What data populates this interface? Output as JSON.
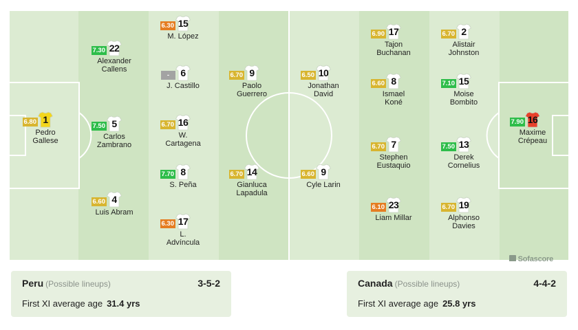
{
  "colors": {
    "stripe_light": "#dcebd2",
    "stripe_dark": "#cfe4c2",
    "line": "#ffffff",
    "shirt": "#ffffff",
    "peru_gk_shirt": "#f3d61c",
    "canada_gk_shirt": "#e8412b",
    "rating_yellow": "#d8b530",
    "rating_green": "#2ebd4a",
    "rating_orange": "#e57d22",
    "rating_grey": "#a3a3a3"
  },
  "brand": {
    "text": "Sofascore",
    "icon": "sofascore-logo-icon"
  },
  "players": [
    {
      "team": "peru",
      "number": "1",
      "name": "Pedro\nGallese",
      "rating": "6.80",
      "rating_color": "yellow",
      "gk": true
    },
    {
      "team": "peru",
      "number": "22",
      "name": "Alexander\nCallens",
      "rating": "7.30",
      "rating_color": "green"
    },
    {
      "team": "peru",
      "number": "5",
      "name": "Carlos\nZambrano",
      "rating": "7.50",
      "rating_color": "green"
    },
    {
      "team": "peru",
      "number": "4",
      "name": "Luis Abram",
      "rating": "6.60",
      "rating_color": "yellow"
    },
    {
      "team": "peru",
      "number": "15",
      "name": "M. López",
      "rating": "6.30",
      "rating_color": "orange"
    },
    {
      "team": "peru",
      "number": "6",
      "name": "J. Castillo",
      "rating": "-",
      "rating_color": "grey"
    },
    {
      "team": "peru",
      "number": "16",
      "name": "W.\nCartagena",
      "rating": "6.70",
      "rating_color": "yellow"
    },
    {
      "team": "peru",
      "number": "8",
      "name": "S. Peña",
      "rating": "7.70",
      "rating_color": "green"
    },
    {
      "team": "peru",
      "number": "17",
      "name": "L.\nAdvíncula",
      "rating": "6.30",
      "rating_color": "orange"
    },
    {
      "team": "peru",
      "number": "9",
      "name": "Paolo\nGuerrero",
      "rating": "6.70",
      "rating_color": "yellow"
    },
    {
      "team": "peru",
      "number": "14",
      "name": "Gianluca\nLapadula",
      "rating": "6.70",
      "rating_color": "yellow"
    },
    {
      "team": "canada",
      "number": "10",
      "name": "Jonathan\nDavid",
      "rating": "6.50",
      "rating_color": "yellow"
    },
    {
      "team": "canada",
      "number": "9",
      "name": "Cyle Larin",
      "rating": "6.60",
      "rating_color": "yellow"
    },
    {
      "team": "canada",
      "number": "17",
      "name": "Tajon\nBuchanan",
      "rating": "6.90",
      "rating_color": "yellow"
    },
    {
      "team": "canada",
      "number": "8",
      "name": "Ismael\nKoné",
      "rating": "6.60",
      "rating_color": "yellow"
    },
    {
      "team": "canada",
      "number": "7",
      "name": "Stephen\nEustaquio",
      "rating": "6.70",
      "rating_color": "yellow"
    },
    {
      "team": "canada",
      "number": "23",
      "name": "Liam Millar",
      "rating": "6.10",
      "rating_color": "orange"
    },
    {
      "team": "canada",
      "number": "2",
      "name": "Alistair\nJohnston",
      "rating": "6.70",
      "rating_color": "yellow"
    },
    {
      "team": "canada",
      "number": "15",
      "name": "Moise\nBombito",
      "rating": "7.10",
      "rating_color": "green"
    },
    {
      "team": "canada",
      "number": "13",
      "name": "Derek\nCornelius",
      "rating": "7.50",
      "rating_color": "green"
    },
    {
      "team": "canada",
      "number": "19",
      "name": "Alphonso\nDavies",
      "rating": "6.70",
      "rating_color": "yellow"
    },
    {
      "team": "canada",
      "number": "16",
      "name": "Maxime\nCrépeau",
      "rating": "7.90",
      "rating_color": "green",
      "gk": true
    }
  ],
  "teams": {
    "home": {
      "name": "Peru",
      "subtitle": "(Possible lineups)",
      "formation": "3-5-2",
      "age_label": "First XI average age",
      "age_value": "31.4 yrs"
    },
    "away": {
      "name": "Canada",
      "subtitle": "(Possible lineups)",
      "formation": "4-4-2",
      "age_label": "First XI average age",
      "age_value": "25.8 yrs"
    }
  }
}
